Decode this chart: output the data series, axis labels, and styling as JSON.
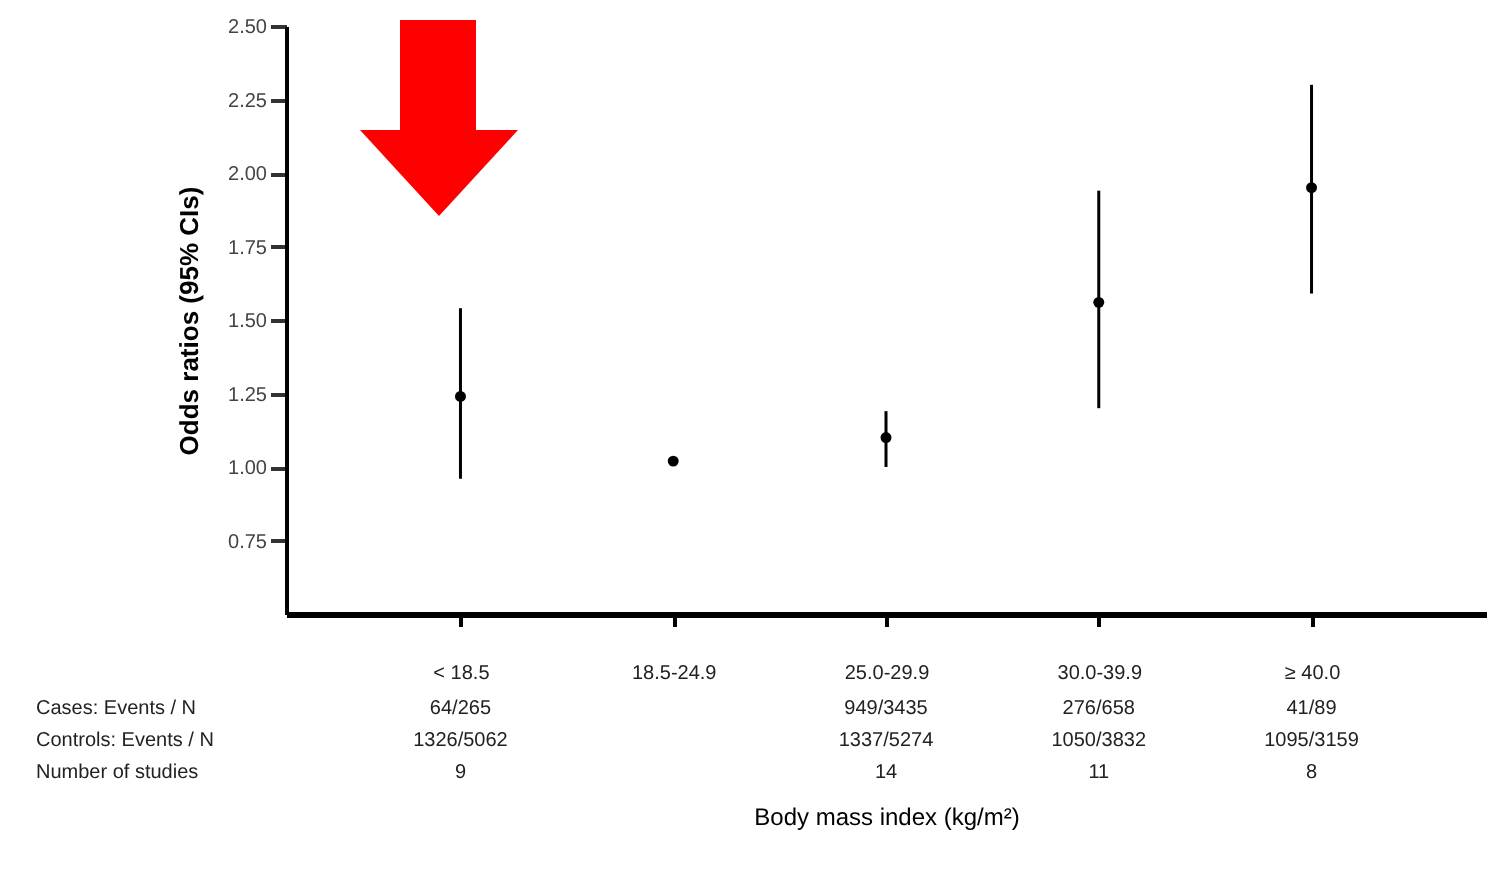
{
  "chart_data": {
    "type": "scatter",
    "xlabel": "Body mass index (kg/m²)",
    "ylabel": "Odds ratios (95% CIs)",
    "categories": [
      "< 18.5",
      "18.5-24.9",
      "25.0-29.9",
      "30.0-39.9",
      "≥ 40.0"
    ],
    "values": [
      1.24,
      1.02,
      1.1,
      1.56,
      1.95
    ],
    "errors": [
      [
        0.96,
        1.54
      ],
      null,
      [
        1.0,
        1.19
      ],
      [
        1.2,
        1.94
      ],
      [
        1.59,
        2.3
      ]
    ],
    "color": "#000000",
    "marker": "circle",
    "ylim": [
      0.5,
      2.5
    ],
    "yticks": [
      {
        "value": 0.75,
        "label": "0.75"
      },
      {
        "value": 1,
        "label": "1.00"
      },
      {
        "value": 1.25,
        "label": "1.25"
      },
      {
        "value": 1.5,
        "label": "1.50"
      },
      {
        "value": 1.75,
        "label": "1.75"
      },
      {
        "value": 2,
        "label": "2.00"
      },
      {
        "value": 2.25,
        "label": "2.25"
      },
      {
        "value": 2.5,
        "label": "2.50"
      }
    ],
    "grid": false,
    "annotations": [
      "Cases: Events / N",
      "Controls: Events / N",
      "Number of studies",
      "64/265",
      "1326/5062",
      "9",
      "949/3435",
      "1337/5274",
      "14",
      "276/658",
      "1050/3832",
      "11",
      "41/89",
      "1095/3159",
      "8"
    ]
  }
}
